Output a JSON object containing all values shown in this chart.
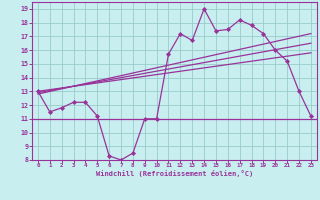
{
  "x": [
    0,
    1,
    2,
    3,
    4,
    5,
    6,
    7,
    8,
    9,
    10,
    11,
    12,
    13,
    14,
    15,
    16,
    17,
    18,
    19,
    20,
    21,
    22,
    23
  ],
  "y_main": [
    13.0,
    11.5,
    11.8,
    12.2,
    12.2,
    11.2,
    8.3,
    8.0,
    8.5,
    11.0,
    11.0,
    15.7,
    17.2,
    16.7,
    19.0,
    17.4,
    17.5,
    18.2,
    17.8,
    17.2,
    16.0,
    15.2,
    13.0,
    11.2
  ],
  "trend1_x": [
    0,
    23
  ],
  "trend1_y": [
    12.8,
    17.2
  ],
  "trend2_x": [
    0,
    23
  ],
  "trend2_y": [
    13.0,
    15.8
  ],
  "trend3_x": [
    0,
    23
  ],
  "trend3_y": [
    12.9,
    16.5
  ],
  "hline_y": 11.0,
  "color": "#993399",
  "bg_color": "#c8eef0",
  "grid_color": "#99cccc",
  "xlabel": "Windchill (Refroidissement éolien,°C)",
  "xlim": [
    -0.5,
    23.5
  ],
  "ylim": [
    8,
    19.5
  ],
  "yticks": [
    8,
    9,
    10,
    11,
    12,
    13,
    14,
    15,
    16,
    17,
    18,
    19
  ],
  "xticks": [
    0,
    1,
    2,
    3,
    4,
    5,
    6,
    7,
    8,
    9,
    10,
    11,
    12,
    13,
    14,
    15,
    16,
    17,
    18,
    19,
    20,
    21,
    22,
    23
  ]
}
